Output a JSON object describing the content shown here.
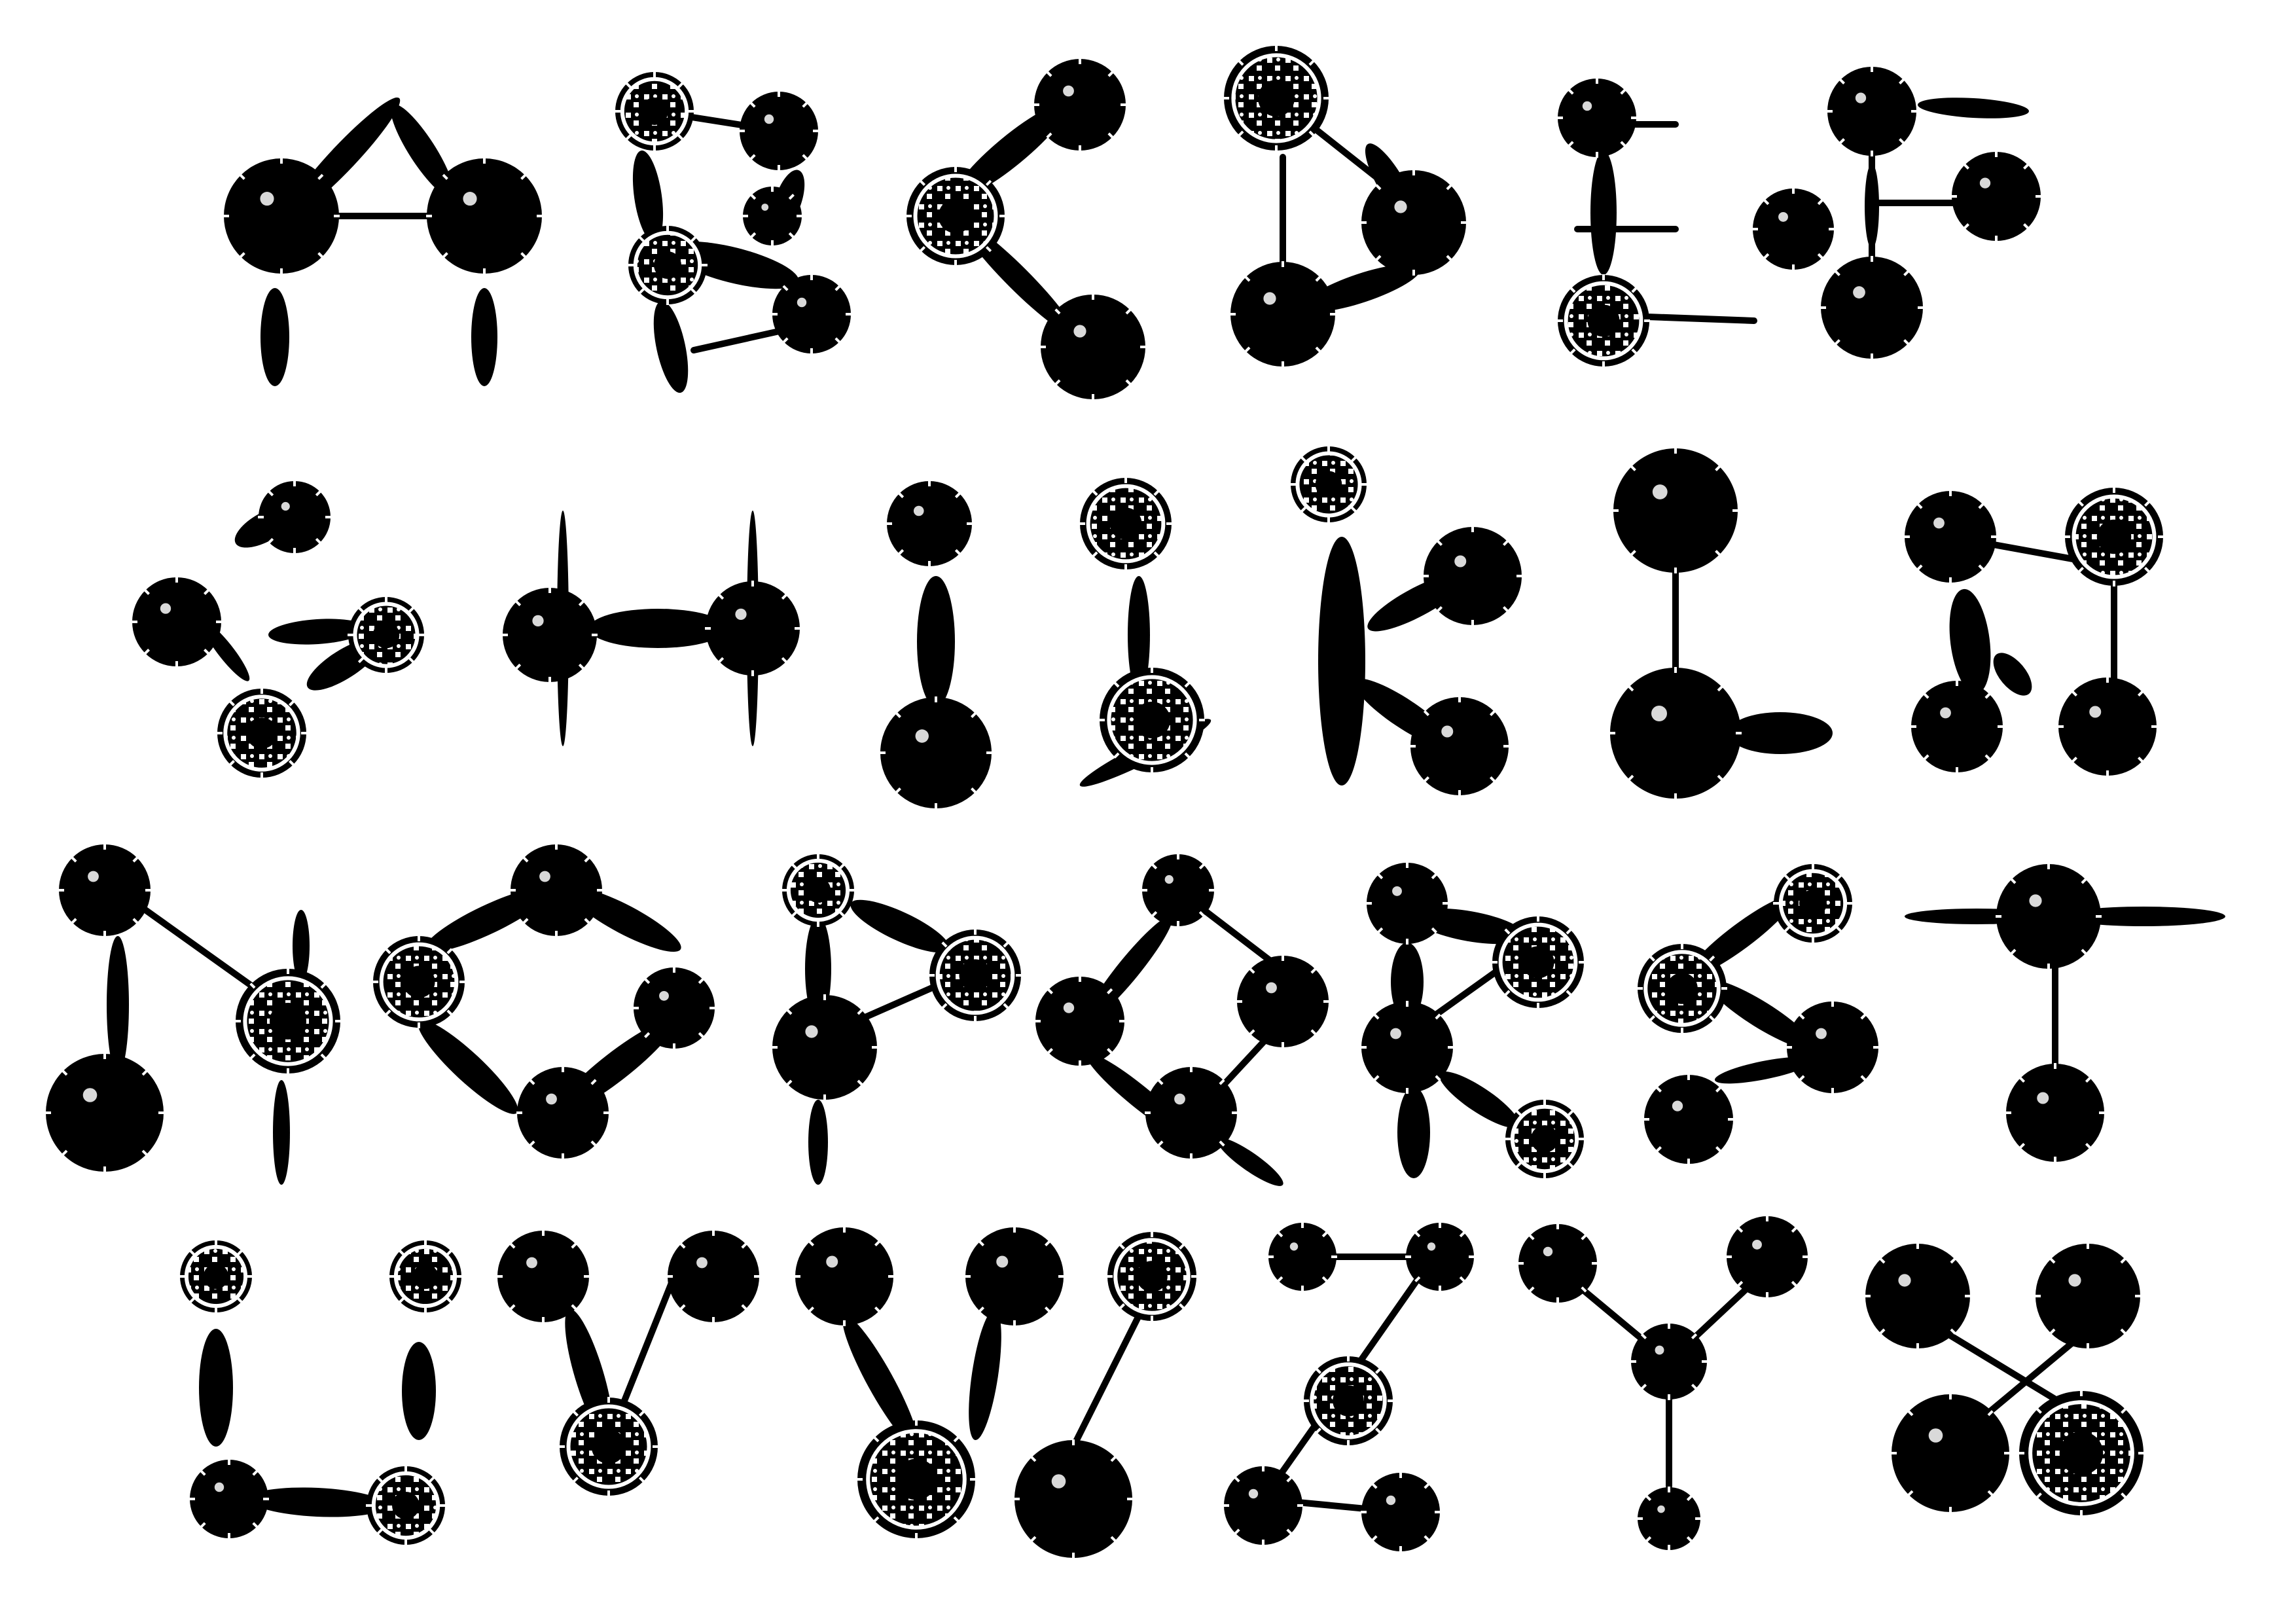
{
  "artwork": {
    "kind": "alphabet made of discs, ovals and thin rods",
    "ink_color": "#000000",
    "paper_color": "#ffffff",
    "rows": [
      [
        "A",
        "B",
        "C",
        "D",
        "E",
        "F"
      ],
      [
        "G",
        "H",
        "I",
        "J",
        "K",
        "L",
        "M"
      ],
      [
        "N",
        "O",
        "P",
        "Q",
        "R",
        "S",
        "T"
      ],
      [
        "U",
        "V",
        "W",
        "Z",
        "Y",
        "X"
      ]
    ],
    "piece_types": [
      "solid-disc",
      "patterned-disc",
      "oval",
      "rod"
    ]
  }
}
